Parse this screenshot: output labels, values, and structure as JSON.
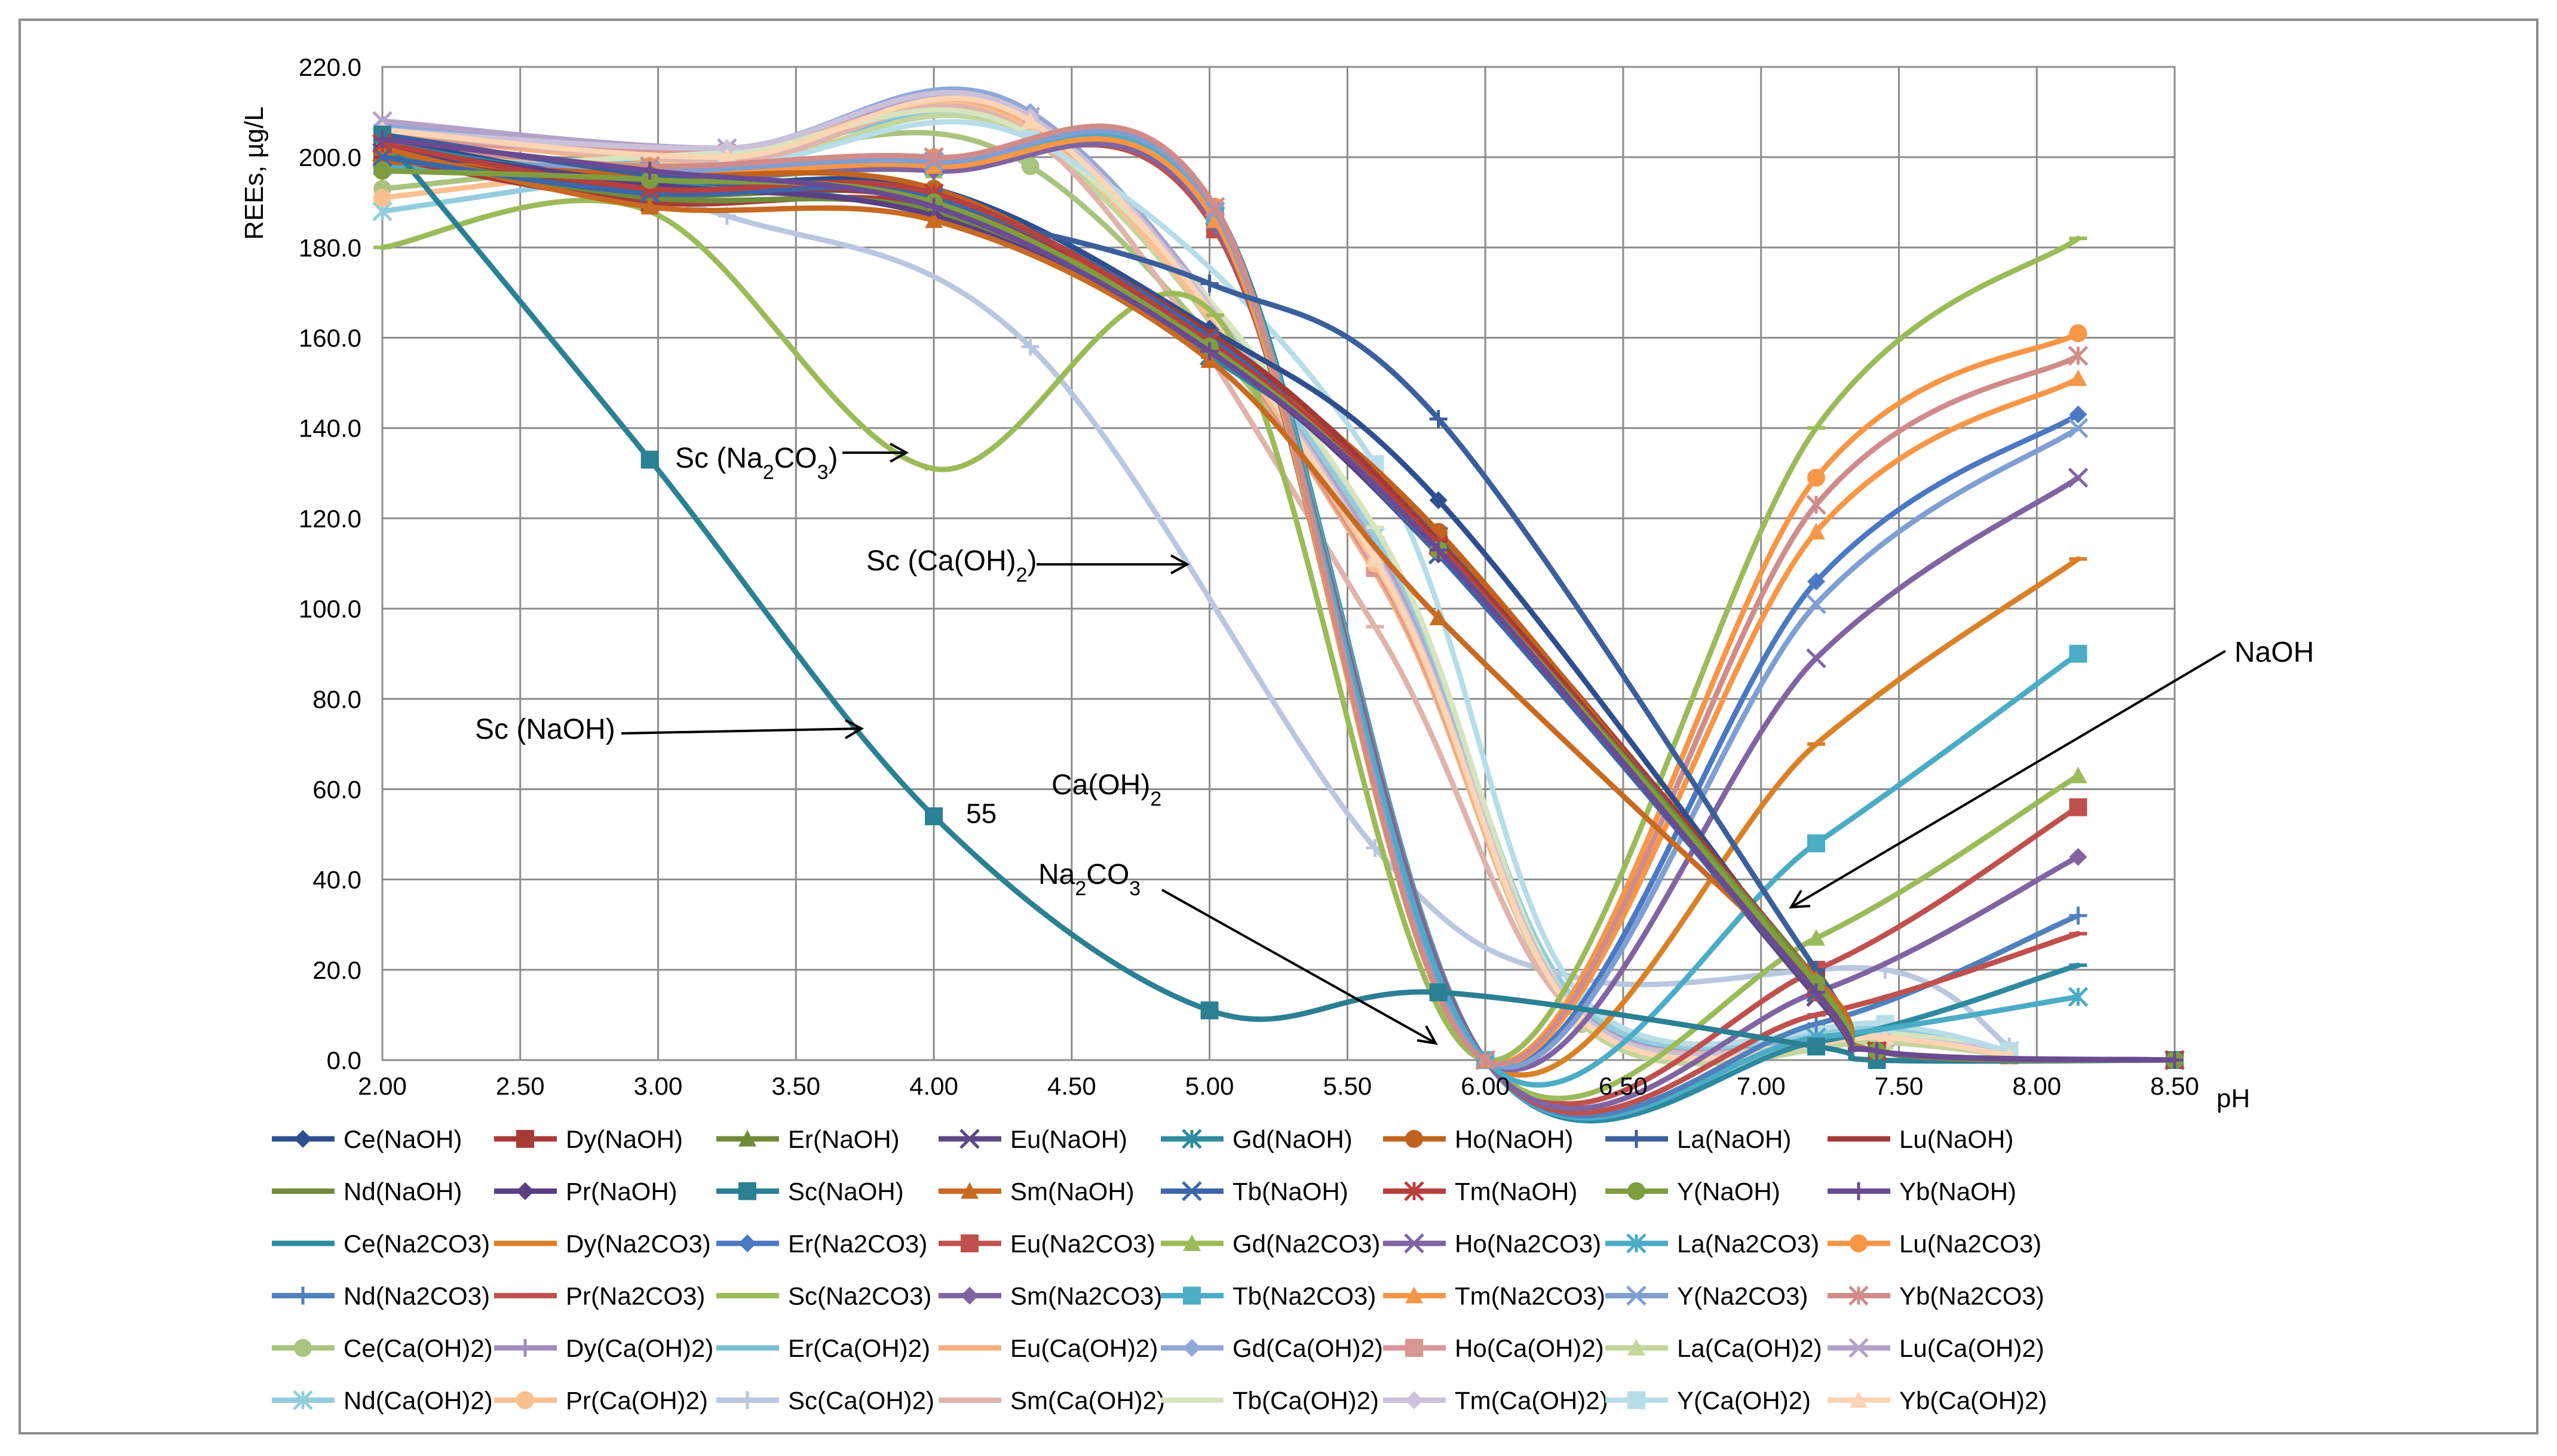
{
  "chart_data": {
    "type": "line",
    "title": "",
    "xlabel": "pH",
    "ylabel": "REEs, µg/L",
    "xlim": [
      2.0,
      8.5
    ],
    "ylim": [
      0,
      220
    ],
    "x_ticks": [
      "2.00",
      "2.50",
      "3.00",
      "3.50",
      "4.00",
      "4.50",
      "5.00",
      "5.50",
      "6.00",
      "6.50",
      "7.00",
      "7.50",
      "8.00",
      "8.50"
    ],
    "y_ticks": [
      "0.0",
      "20.0",
      "40.0",
      "60.0",
      "80.0",
      "100.0",
      "120.0",
      "140.0",
      "160.0",
      "180.0",
      "200.0",
      "220.0"
    ],
    "grid": true,
    "legend_position": "bottom",
    "groups": {
      "NaOH": {
        "x": [
          2.0,
          2.97,
          4.0,
          5.0,
          5.83,
          7.2,
          7.42,
          8.5
        ],
        "series": [
          {
            "name": "Ce(NaOH)",
            "color": "#2E4F8E",
            "marker": "diamond",
            "values": [
              204,
              194,
              193,
              162,
              124,
              16,
              2,
              0
            ]
          },
          {
            "name": "Dy(NaOH)",
            "color": "#A83A36",
            "marker": "square",
            "values": [
              200,
              190,
              189,
              160,
              116,
              18,
              2,
              0
            ]
          },
          {
            "name": "Er(NaOH)",
            "color": "#70883A",
            "marker": "triangle",
            "values": [
              202,
              192,
              190,
              157,
              115,
              17,
              2,
              0
            ]
          },
          {
            "name": "Eu(NaOH)",
            "color": "#5D4784",
            "marker": "x",
            "values": [
              201,
              193,
              192,
              159,
              114,
              14,
              2,
              0
            ]
          },
          {
            "name": "Gd(NaOH)",
            "color": "#2F8A9E",
            "marker": "star",
            "values": [
              203,
              194,
              191,
              156,
              116,
              16,
              2,
              0
            ]
          },
          {
            "name": "Ho(NaOH)",
            "color": "#C0631E",
            "marker": "circle",
            "values": [
              199,
              196,
              193,
              158,
              117,
              15,
              2,
              0
            ]
          },
          {
            "name": "La(NaOH)",
            "color": "#3A5F9C",
            "marker": "plus",
            "values": [
              205,
              196,
              188,
              172,
              142,
              20,
              2,
              0
            ]
          },
          {
            "name": "Lu(NaOH)",
            "color": "#A13A37",
            "marker": "dash",
            "values": [
              200,
              193,
              190,
              161,
              115,
              17,
              2,
              0
            ]
          },
          {
            "name": "Nd(NaOH)",
            "color": "#6F8B3B",
            "marker": "dash",
            "values": [
              201,
              191,
              188,
              158,
              113,
              18,
              2,
              0
            ]
          },
          {
            "name": "Pr(NaOH)",
            "color": "#5A3F82",
            "marker": "diamond",
            "values": [
              202,
              194,
              187,
              157,
              112,
              16,
              2,
              0
            ]
          },
          {
            "name": "Sc(NaOH)",
            "color": "#2B8093",
            "marker": "square",
            "values": [
              205,
              133,
              54,
              11,
              15,
              3,
              0,
              0
            ]
          },
          {
            "name": "Sm(NaOH)",
            "color": "#C86A22",
            "marker": "triangle",
            "values": [
              202,
              189,
              186,
              155,
              98,
              18,
              2,
              0
            ]
          },
          {
            "name": "Tb(NaOH)",
            "color": "#3D66A8",
            "marker": "x",
            "values": [
              200,
              192,
              191,
              160,
              112,
              15,
              2,
              0
            ]
          },
          {
            "name": "Tm(NaOH)",
            "color": "#B6403D",
            "marker": "star",
            "values": [
              203,
              193,
              192,
              159,
              114,
              16,
              2,
              0
            ]
          },
          {
            "name": "Y(NaOH)",
            "color": "#7E9D3F",
            "marker": "circle",
            "values": [
              197,
              195,
              190,
              158,
              113,
              17,
              2,
              0
            ]
          },
          {
            "name": "Yb(NaOH)",
            "color": "#6A4B92",
            "marker": "plus",
            "values": [
              204,
              197,
              189,
              157,
              113,
              15,
              2,
              0
            ]
          }
        ]
      },
      "Na2CO3": {
        "x": [
          2.0,
          2.97,
          4.0,
          5.02,
          6.0,
          7.2,
          8.15
        ],
        "series": [
          {
            "name": "Ce(Na2CO3)",
            "color": "#2E8AA0",
            "marker": "dash",
            "values": [
              202,
              196,
              198,
              189,
              0,
              4,
              21
            ]
          },
          {
            "name": "Dy(Na2CO3)",
            "color": "#D98127",
            "marker": "dash",
            "values": [
              200,
              195,
              197,
              186,
              0,
              70,
              111
            ]
          },
          {
            "name": "Er(Na2CO3)",
            "color": "#4B78C2",
            "marker": "diamond",
            "values": [
              201,
              197,
              199,
              185,
              0,
              106,
              143
            ]
          },
          {
            "name": "Eu(Na2CO3)",
            "color": "#C0504D",
            "marker": "square",
            "values": [
              199,
              196,
              198,
              184,
              0,
              20,
              56
            ]
          },
          {
            "name": "Gd(Na2CO3)",
            "color": "#9BBB59",
            "marker": "triangle",
            "values": [
              202,
              195,
              197,
              186,
              0,
              27,
              63
            ]
          },
          {
            "name": "Ho(Na2CO3)",
            "color": "#8064A2",
            "marker": "x",
            "values": [
              200,
              197,
              199,
              187,
              0,
              89,
              129
            ]
          },
          {
            "name": "La(Na2CO3)",
            "color": "#4BACC6",
            "marker": "star",
            "values": [
              201,
              196,
              198,
              188,
              0,
              5,
              14
            ]
          },
          {
            "name": "Lu(Na2CO3)",
            "color": "#F79646",
            "marker": "circle",
            "values": [
              203,
              198,
              200,
              189,
              0,
              129,
              161
            ]
          },
          {
            "name": "Nd(Na2CO3)",
            "color": "#4F81BD",
            "marker": "plus",
            "values": [
              200,
              195,
              197,
              185,
              0,
              8,
              32
            ]
          },
          {
            "name": "Pr(Na2CO3)",
            "color": "#C0504D",
            "marker": "dash",
            "values": [
              201,
              196,
              198,
              186,
              0,
              10,
              28
            ]
          },
          {
            "name": "Sc(Na2CO3)",
            "color": "#9BBB59",
            "marker": "dash",
            "values": [
              180,
              188,
              131,
              165,
              0,
              140,
              182
            ]
          },
          {
            "name": "Sm(Na2CO3)",
            "color": "#8064A2",
            "marker": "diamond",
            "values": [
              199,
              195,
              197,
              185,
              0,
              15,
              45
            ]
          },
          {
            "name": "Tb(Na2CO3)",
            "color": "#4BACC6",
            "marker": "square",
            "values": [
              198,
              197,
              199,
              187,
              0,
              48,
              90
            ]
          },
          {
            "name": "Tm(Na2CO3)",
            "color": "#F79646",
            "marker": "triangle",
            "values": [
              202,
              196,
              198,
              186,
              0,
              117,
              151
            ]
          },
          {
            "name": "Y(Na2CO3)",
            "color": "#7F9FD3",
            "marker": "x",
            "values": [
              201,
              197,
              199,
              188,
              0,
              101,
              140
            ]
          },
          {
            "name": "Yb(Na2CO3)",
            "color": "#D08C8A",
            "marker": "star",
            "values": [
              203,
              198,
              200,
              189,
              0,
              123,
              156
            ]
          }
        ]
      },
      "CaOH2": {
        "x": [
          2.0,
          3.25,
          4.35,
          5.6,
          6.35,
          7.45,
          7.9
        ],
        "series": [
          {
            "name": "Ce(Ca(OH)2)",
            "color": "#A9C47F",
            "marker": "circle",
            "values": [
              193,
              200,
              198,
              110,
              8,
              4,
              1
            ]
          },
          {
            "name": "Dy(Ca(OH)2)",
            "color": "#A08CC0",
            "marker": "plus",
            "values": [
              207,
              201,
              208,
              112,
              9,
              5,
              2
            ]
          },
          {
            "name": "Er(Ca(OH)2)",
            "color": "#79BFD6",
            "marker": "dash",
            "values": [
              199,
              200,
              204,
              115,
              10,
              6,
              2
            ]
          },
          {
            "name": "Eu(Ca(OH)2)",
            "color": "#F8B080",
            "marker": "dash",
            "values": [
              205,
              199,
              207,
              108,
              9,
              5,
              1
            ]
          },
          {
            "name": "Gd(Ca(OH)2)",
            "color": "#8FA8D6",
            "marker": "diamond",
            "values": [
              207,
              202,
              210,
              113,
              11,
              6,
              2
            ]
          },
          {
            "name": "Ho(Ca(OH)2)",
            "color": "#D99694",
            "marker": "square",
            "values": [
              204,
              201,
              206,
              109,
              10,
              5,
              1
            ]
          },
          {
            "name": "La(Ca(OH)2)",
            "color": "#C3D69B",
            "marker": "triangle",
            "values": [
              201,
              198,
              204,
              111,
              8,
              4,
              1
            ]
          },
          {
            "name": "Lu(Ca(OH)2)",
            "color": "#B3A2C7",
            "marker": "x",
            "values": [
              208,
              202,
              209,
              114,
              10,
              5,
              2
            ]
          },
          {
            "name": "Nd(Ca(OH)2)",
            "color": "#93CDDD",
            "marker": "star",
            "values": [
              188,
              199,
              205,
              116,
              12,
              7,
              2
            ]
          },
          {
            "name": "Pr(Ca(OH)2)",
            "color": "#FAC090",
            "marker": "circle",
            "values": [
              191,
              200,
              206,
              110,
              9,
              5,
              1
            ]
          },
          {
            "name": "Sc(Ca(OH)2)",
            "color": "#B9C7E0",
            "marker": "plus",
            "values": [
              203,
              187,
              158,
              47,
              18,
              20,
              3
            ]
          },
          {
            "name": "Sm(Ca(OH)2)",
            "color": "#E0B3AB",
            "marker": "dash",
            "values": [
              206,
              199,
              205,
              96,
              9,
              5,
              1
            ]
          },
          {
            "name": "Tb(Ca(OH)2)",
            "color": "#D7E4BD",
            "marker": "dash",
            "values": [
              197,
              201,
              205,
              118,
              10,
              6,
              2
            ]
          },
          {
            "name": "Tm(Ca(OH)2)",
            "color": "#CCC1DA",
            "marker": "diamond",
            "values": [
              206,
              202,
              209,
              112,
              10,
              5,
              2
            ]
          },
          {
            "name": "Y(Ca(OH)2)",
            "color": "#B7DDE8",
            "marker": "square",
            "values": [
              198,
              198,
              204,
              132,
              14,
              8,
              2
            ]
          },
          {
            "name": "Yb(Ca(OH)2)",
            "color": "#FCD5B5",
            "marker": "triangle",
            "values": [
              206,
              200,
              208,
              111,
              9,
              5,
              1
            ]
          }
        ]
      }
    },
    "annotations": {
      "sc_na2co3": {
        "base": "Sc (Na",
        "sub1": "2",
        "mid": "CO",
        "sub2": "3",
        "end": ")"
      },
      "sc_caoh2": {
        "base": "Sc (Ca(OH)",
        "sub1": "2",
        "end": ")"
      },
      "sc_naoh": "Sc (NaOH)",
      "value_55": "55",
      "caoh2": {
        "base": "Ca(OH)",
        "sub1": "2"
      },
      "na2co3": {
        "base": "Na",
        "sub1": "2",
        "mid": "CO",
        "sub2": "3"
      },
      "naoh": "NaOH"
    }
  }
}
